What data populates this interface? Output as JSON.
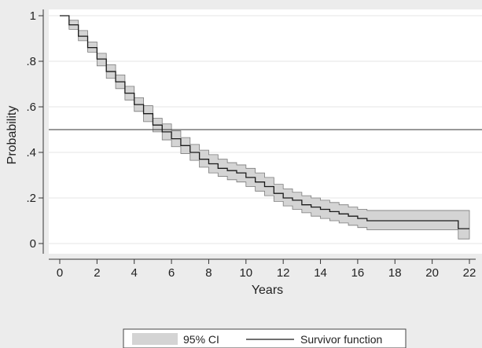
{
  "chart_data": {
    "type": "line",
    "xlabel": "Years",
    "ylabel": "Probability",
    "xlim": [
      0,
      22
    ],
    "ylim": [
      0,
      1
    ],
    "x_ticks": [
      "0",
      "2",
      "4",
      "6",
      "8",
      "10",
      "12",
      "14",
      "16",
      "18",
      "20",
      "22"
    ],
    "y_ticks": [
      "0",
      ".2",
      ".4",
      ".6",
      ".8",
      "1"
    ],
    "grid": true,
    "legend_position": "bottom",
    "reference_line_y": 0.5,
    "legend": {
      "ci_label": "95% CI",
      "survivor_label": "Survivor function"
    },
    "colors": {
      "background": "#ececec",
      "plot_area": "#ffffff",
      "grid": "#e6e6e6",
      "ci_band": "#d4d4d4",
      "ci_edge": "#7a7a7a",
      "line": "#1a1a1a"
    },
    "series": [
      {
        "name": "Survivor function",
        "x": [
          0,
          0.5,
          1,
          1.5,
          2,
          2.5,
          3,
          3.5,
          4,
          4.5,
          5,
          5.5,
          6,
          6.5,
          7,
          7.5,
          8,
          8.5,
          9,
          9.5,
          10,
          10.5,
          11,
          11.5,
          12,
          12.5,
          13,
          13.5,
          14,
          14.5,
          15,
          15.5,
          16,
          16.5,
          17,
          18,
          19,
          20,
          21,
          21.4,
          22
        ],
        "y": [
          1.0,
          0.96,
          0.91,
          0.86,
          0.81,
          0.755,
          0.71,
          0.66,
          0.61,
          0.57,
          0.52,
          0.49,
          0.46,
          0.43,
          0.4,
          0.37,
          0.35,
          0.33,
          0.32,
          0.31,
          0.29,
          0.27,
          0.25,
          0.22,
          0.2,
          0.19,
          0.17,
          0.16,
          0.15,
          0.14,
          0.13,
          0.12,
          0.11,
          0.1,
          0.1,
          0.1,
          0.1,
          0.1,
          0.1,
          0.065,
          0.065
        ],
        "lower": [
          1.0,
          0.94,
          0.89,
          0.84,
          0.78,
          0.725,
          0.68,
          0.63,
          0.58,
          0.535,
          0.49,
          0.455,
          0.425,
          0.395,
          0.365,
          0.335,
          0.31,
          0.295,
          0.28,
          0.27,
          0.25,
          0.23,
          0.21,
          0.185,
          0.165,
          0.15,
          0.135,
          0.12,
          0.11,
          0.1,
          0.09,
          0.08,
          0.07,
          0.06,
          0.06,
          0.06,
          0.06,
          0.06,
          0.06,
          0.02,
          0.02
        ],
        "upper": [
          1.0,
          0.98,
          0.935,
          0.885,
          0.835,
          0.785,
          0.74,
          0.69,
          0.64,
          0.605,
          0.55,
          0.525,
          0.495,
          0.465,
          0.435,
          0.41,
          0.39,
          0.37,
          0.355,
          0.345,
          0.33,
          0.31,
          0.29,
          0.26,
          0.24,
          0.225,
          0.21,
          0.2,
          0.19,
          0.18,
          0.17,
          0.16,
          0.15,
          0.145,
          0.145,
          0.145,
          0.145,
          0.145,
          0.145,
          0.145,
          0.145
        ]
      }
    ]
  }
}
